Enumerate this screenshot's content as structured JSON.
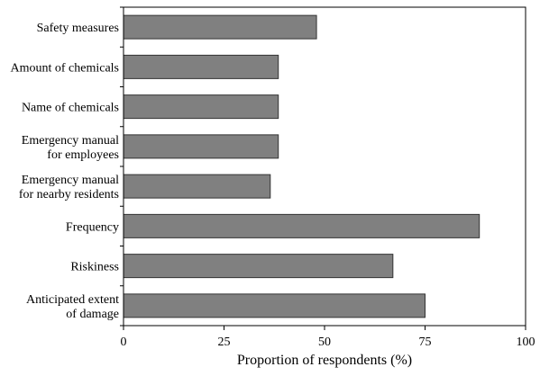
{
  "chart_data": {
    "type": "bar",
    "orientation": "horizontal",
    "xlabel": "Proportion of respondents (%)",
    "categories": [
      "Safety measures",
      "Amount of chemicals",
      "Name of chemicals",
      "Emergency manual\nfor employees",
      "Emergency manual\nfor nearby residents",
      "Frequency",
      "Riskiness",
      "Anticipated extent\nof damage"
    ],
    "values": [
      48,
      38.5,
      38.5,
      38.5,
      36.5,
      88.5,
      67,
      75
    ],
    "color": "#808080",
    "xlim": [
      0,
      100
    ],
    "xticks": [
      0,
      25,
      50,
      75,
      100
    ],
    "grid": false
  }
}
